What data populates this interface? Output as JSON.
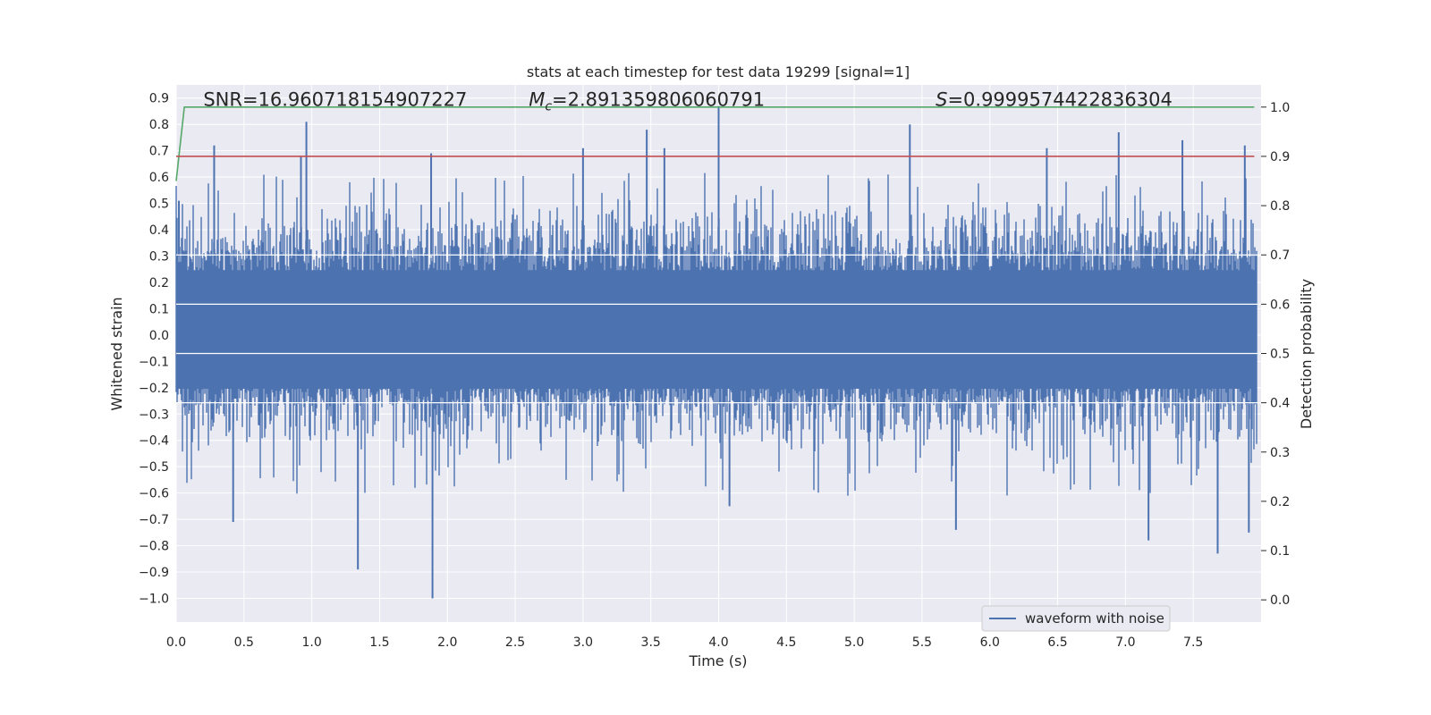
{
  "chart_data": {
    "type": "line",
    "title": "stats at each timestep for test data 19299 [signal=1]",
    "xlabel": "Time (s)",
    "ylabel": "Whitened strain",
    "y2label": "Detection probability",
    "xlim": [
      0.0,
      8.0
    ],
    "ylim": [
      -1.09,
      0.95
    ],
    "y2lim": [
      -0.045,
      1.045
    ],
    "xticks": [
      0.0,
      0.5,
      1.0,
      1.5,
      2.0,
      2.5,
      3.0,
      3.5,
      4.0,
      4.5,
      5.0,
      5.5,
      6.0,
      6.5,
      7.0,
      7.5
    ],
    "xtick_labels": [
      "0.0",
      "0.5",
      "1.0",
      "1.5",
      "2.0",
      "2.5",
      "3.0",
      "3.5",
      "4.0",
      "4.5",
      "5.0",
      "5.5",
      "6.0",
      "6.5",
      "7.0",
      "7.5"
    ],
    "yticks": [
      0.9,
      0.8,
      0.7,
      0.6,
      0.5,
      0.4,
      0.3,
      0.2,
      0.1,
      0.0,
      -0.1,
      -0.2,
      -0.3,
      -0.4,
      -0.5,
      -0.6,
      -0.7,
      -0.8,
      -0.9,
      -1.0
    ],
    "ytick_labels": [
      "0.9",
      "0.8",
      "0.7",
      "0.6",
      "0.5",
      "0.4",
      "0.3",
      "0.2",
      "0.1",
      "0.0",
      "−0.1",
      "−0.2",
      "−0.3",
      "−0.4",
      "−0.5",
      "−0.6",
      "−0.7",
      "−0.8",
      "−0.9",
      "−1.0"
    ],
    "y2ticks": [
      1.0,
      0.9,
      0.8,
      0.7,
      0.6,
      0.5,
      0.4,
      0.3,
      0.2,
      0.1,
      0.0
    ],
    "y2tick_labels": [
      "1.0",
      "0.9",
      "0.8",
      "0.7",
      "0.6",
      "0.5",
      "0.4",
      "0.3",
      "0.2",
      "0.1",
      "0.0"
    ],
    "grid": true,
    "legend": {
      "placement": "lower-right",
      "entries": [
        "waveform with noise"
      ]
    },
    "annotations": [
      {
        "key": "snr",
        "text": "SNR=16.960718154907227",
        "x": 0.2,
        "y": 0.87
      },
      {
        "key": "mc",
        "label_main": "M",
        "label_sub": "c",
        "text": "=2.891359806060791",
        "x": 2.6,
        "y": 0.87
      },
      {
        "key": "s",
        "label_main": "S",
        "text": "=0.9999574422836304",
        "x": 5.6,
        "y": 0.87
      }
    ],
    "series": [
      {
        "name": "waveform with noise",
        "color": "#4c72b0",
        "kind": "noise",
        "sample_rate_hz": 2048,
        "duration_s": 7.97,
        "core_range": [
          -0.24,
          0.29
        ],
        "spikes": [
          {
            "t": 0.02,
            "v": 0.51
          },
          {
            "t": 0.28,
            "v": 0.72
          },
          {
            "t": 0.42,
            "v": -0.71
          },
          {
            "t": 0.92,
            "v": 0.68
          },
          {
            "t": 0.96,
            "v": 0.81
          },
          {
            "t": 1.34,
            "v": -0.89
          },
          {
            "t": 1.88,
            "v": 0.69
          },
          {
            "t": 1.89,
            "v": -1.0
          },
          {
            "t": 3.0,
            "v": 0.71
          },
          {
            "t": 3.47,
            "v": 0.78
          },
          {
            "t": 3.6,
            "v": 0.71
          },
          {
            "t": 4.0,
            "v": 0.87
          },
          {
            "t": 4.08,
            "v": -0.65
          },
          {
            "t": 5.41,
            "v": 0.8
          },
          {
            "t": 5.75,
            "v": -0.74
          },
          {
            "t": 6.42,
            "v": 0.71
          },
          {
            "t": 6.95,
            "v": 0.77
          },
          {
            "t": 7.17,
            "v": -0.78
          },
          {
            "t": 7.42,
            "v": 0.74
          },
          {
            "t": 7.68,
            "v": -0.83
          },
          {
            "t": 7.88,
            "v": 0.72
          },
          {
            "t": 7.91,
            "v": -0.75
          }
        ]
      },
      {
        "name": "detection probability",
        "color": "#55a868",
        "axis": "right",
        "x": [
          0.0,
          0.06,
          7.95
        ],
        "values": [
          0.85,
          1.0,
          1.0
        ]
      },
      {
        "name": "threshold",
        "color": "#c44e52",
        "axis": "right",
        "x": [
          0.0,
          7.95
        ],
        "values": [
          0.9,
          0.9
        ]
      }
    ]
  }
}
